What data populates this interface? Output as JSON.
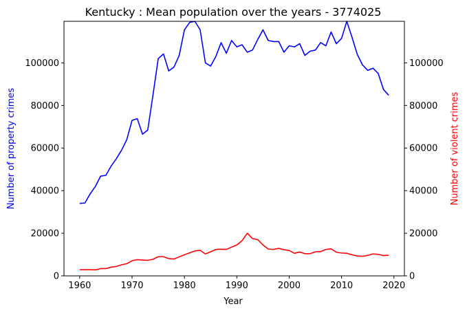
{
  "chart_data": {
    "type": "line",
    "title": "Kentucky : Mean population over the years - 3774025",
    "xlabel": "Year",
    "ylabel_left": "Number of property crimes",
    "ylabel_right": "Number of violent crimes",
    "xlim": [
      1957,
      2022
    ],
    "ylim": [
      0,
      119500
    ],
    "x_ticks": [
      1960,
      1970,
      1980,
      1990,
      2000,
      2010,
      2020
    ],
    "y_ticks": [
      0,
      20000,
      40000,
      60000,
      80000,
      100000
    ],
    "y_ticks_right": [
      0,
      20000,
      40000,
      60000,
      80000,
      100000
    ],
    "grid": false,
    "colors": {
      "property": "#0000ff",
      "violent": "#ff0000",
      "left_label": "#0000ff",
      "right_label": "#ff0000"
    },
    "x": [
      1960,
      1961,
      1962,
      1963,
      1964,
      1965,
      1966,
      1967,
      1968,
      1969,
      1970,
      1971,
      1972,
      1973,
      1974,
      1975,
      1976,
      1977,
      1978,
      1979,
      1980,
      1981,
      1982,
      1983,
      1984,
      1985,
      1986,
      1987,
      1988,
      1989,
      1990,
      1991,
      1992,
      1993,
      1994,
      1995,
      1996,
      1997,
      1998,
      1999,
      2000,
      2001,
      2002,
      2003,
      2004,
      2005,
      2006,
      2007,
      2008,
      2009,
      2010,
      2011,
      2012,
      2013,
      2014,
      2015,
      2016,
      2017,
      2018,
      2019
    ],
    "series": [
      {
        "key": "property",
        "axis": "left",
        "values": [
          34000,
          34200,
          38500,
          42000,
          46800,
          47200,
          51500,
          55000,
          59000,
          64000,
          73000,
          73800,
          66500,
          68500,
          85000,
          102000,
          104200,
          96200,
          98000,
          103500,
          115500,
          119000,
          119500,
          115500,
          100000,
          98500,
          103000,
          109500,
          104500,
          110500,
          107500,
          108500,
          105000,
          106000,
          111000,
          115500,
          110500,
          110000,
          110000,
          105000,
          108000,
          107500,
          109000,
          103500,
          105500,
          106000,
          109500,
          108000,
          114500,
          109000,
          111500,
          119500,
          112000,
          104000,
          99000,
          96500,
          97500,
          95000,
          87500,
          84800
        ]
      },
      {
        "key": "violent",
        "axis": "right",
        "values": [
          2900,
          2900,
          2900,
          2800,
          3400,
          3400,
          4100,
          4400,
          5200,
          5700,
          7100,
          7600,
          7400,
          7300,
          7800,
          9000,
          9000,
          8100,
          7900,
          8900,
          9900,
          10800,
          11700,
          12000,
          10300,
          11300,
          12400,
          12500,
          12400,
          13500,
          14500,
          16500,
          20000,
          17500,
          17000,
          14500,
          12600,
          12400,
          12900,
          12300,
          11900,
          10600,
          11200,
          10400,
          10400,
          11300,
          11400,
          12400,
          12700,
          11100,
          10700,
          10600,
          9900,
          9300,
          9200,
          9600,
          10300,
          10100,
          9500,
          9700
        ]
      }
    ]
  }
}
